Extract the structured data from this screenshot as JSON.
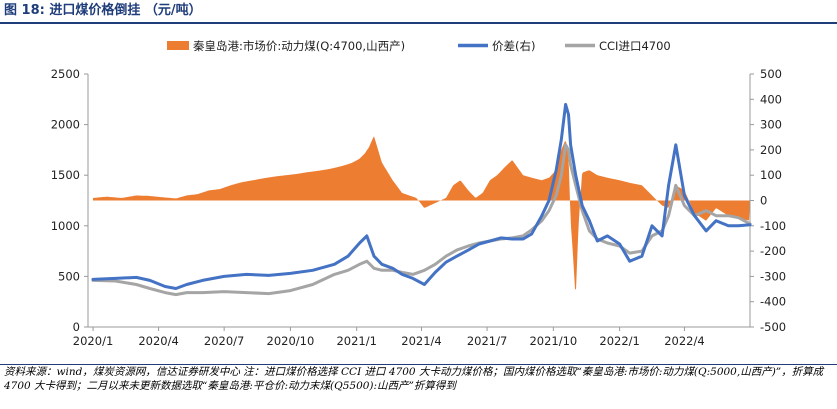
{
  "figure": {
    "title": "图 18:  进口煤价格倒挂 （元/吨）",
    "source": "资料来源：wind，煤炭资源网，信达证券研发中心    注：进口煤价格选择 CCI 进口 4700 大卡动力煤价格；国内煤价格选取“秦皇岛港:市场价:动力煤(Q:5000,山西产)”，折算成 4700 大卡得到；二月以来未更新数据选取“秦皇岛港:平仓价:动力末煤(Q5500):山西产”折算得到"
  },
  "colors": {
    "domestic": "#ed7d31",
    "spread": "#4472c4",
    "import": "#a5a5a5",
    "axis": "#9a9a9a"
  },
  "chart_data": {
    "type": "line",
    "title": "",
    "xlabel": "",
    "ylabel": "",
    "x_range": [
      "2020/1",
      "2022/7"
    ],
    "x_ticks": [
      "2020/1",
      "2020/4",
      "2020/7",
      "2020/10",
      "2021/1",
      "2021/4",
      "2021/7",
      "2021/10",
      "2022/1",
      "2022/4"
    ],
    "ylim_left": [
      0,
      2500
    ],
    "yticks_left": [
      0,
      500,
      1000,
      1500,
      2000,
      2500
    ],
    "ylim_right": [
      -500,
      500
    ],
    "yticks_right": [
      -500,
      -400,
      -300,
      -200,
      -100,
      0,
      100,
      200,
      300,
      400,
      500
    ],
    "grid": false,
    "legend_position": "top",
    "series": [
      {
        "name": "秦皇岛港:市场价:动力煤(Q:4700,山西产)",
        "kind": "area",
        "axis": "right",
        "x": [
          "2020/1/1",
          "2020/1/20",
          "2020/2/10",
          "2020/3/1",
          "2020/3/20",
          "2020/4/10",
          "2020/4/25",
          "2020/5/10",
          "2020/5/25",
          "2020/6/10",
          "2020/6/25",
          "2020/7/10",
          "2020/7/25",
          "2020/8/10",
          "2020/8/25",
          "2020/9/10",
          "2020/9/25",
          "2020/10/10",
          "2020/10/25",
          "2020/11/10",
          "2020/11/25",
          "2020/12/10",
          "2020/12/25",
          "2021/1/5",
          "2021/1/12",
          "2021/1/18",
          "2021/1/25",
          "2021/2/5",
          "2021/2/20",
          "2021/3/5",
          "2021/3/15",
          "2021/3/25",
          "2021/4/5",
          "2021/4/20",
          "2021/5/5",
          "2021/5/15",
          "2021/5/25",
          "2021/6/5",
          "2021/6/15",
          "2021/6/25",
          "2021/7/5",
          "2021/7/15",
          "2021/7/25",
          "2021/8/5",
          "2021/8/20",
          "2021/9/1",
          "2021/9/15",
          "2021/9/25",
          "2021/10/5",
          "2021/10/12",
          "2021/10/18",
          "2021/10/22",
          "2021/10/25",
          "2021/10/28",
          "2021/11/1",
          "2021/11/5",
          "2021/11/10",
          "2021/11/20",
          "2021/12/1",
          "2021/12/15",
          "2022/1/1",
          "2022/1/15",
          "2022/2/1",
          "2022/2/15",
          "2022/3/1",
          "2022/3/10",
          "2022/3/20",
          "2022/4/1",
          "2022/4/15",
          "2022/5/1",
          "2022/5/15",
          "2022/6/1",
          "2022/6/15",
          "2022/7/1"
        ],
        "values": [
          10,
          15,
          10,
          20,
          18,
          12,
          8,
          20,
          25,
          40,
          45,
          60,
          72,
          80,
          88,
          95,
          100,
          105,
          112,
          118,
          125,
          135,
          148,
          165,
          185,
          210,
          255,
          150,
          80,
          30,
          20,
          10,
          -30,
          -10,
          10,
          60,
          80,
          40,
          10,
          30,
          80,
          100,
          130,
          160,
          100,
          90,
          80,
          90,
          120,
          200,
          240,
          190,
          -80,
          -200,
          -390,
          -100,
          110,
          120,
          100,
          90,
          80,
          70,
          60,
          20,
          -20,
          -30,
          60,
          40,
          -50,
          -80,
          -30,
          -60,
          -70,
          -80
        ]
      },
      {
        "name": "价差(右)",
        "kind": "line",
        "axis": "left",
        "x": [
          "2020/1/1",
          "2020/2/1",
          "2020/3/1",
          "2020/3/20",
          "2020/4/10",
          "2020/4/25",
          "2020/5/10",
          "2020/6/1",
          "2020/7/1",
          "2020/8/1",
          "2020/9/1",
          "2020/10/1",
          "2020/11/1",
          "2020/12/1",
          "2020/12/20",
          "2021/1/5",
          "2021/1/15",
          "2021/1/25",
          "2021/2/5",
          "2021/2/20",
          "2021/3/5",
          "2021/3/20",
          "2021/4/5",
          "2021/4/20",
          "2021/5/5",
          "2021/5/20",
          "2021/6/5",
          "2021/6/20",
          "2021/7/5",
          "2021/7/20",
          "2021/8/5",
          "2021/8/20",
          "2021/9/1",
          "2021/9/15",
          "2021/9/25",
          "2021/10/5",
          "2021/10/12",
          "2021/10/18",
          "2021/10/22",
          "2021/10/25",
          "2021/11/1",
          "2021/11/10",
          "2021/11/20",
          "2021/12/1",
          "2021/12/15",
          "2022/1/1",
          "2022/1/15",
          "2022/2/1",
          "2022/2/15",
          "2022/3/1",
          "2022/3/10",
          "2022/3/20",
          "2022/4/1",
          "2022/4/15",
          "2022/5/1",
          "2022/5/15",
          "2022/6/1",
          "2022/6/15",
          "2022/7/1"
        ],
        "values": [
          470,
          480,
          490,
          460,
          400,
          380,
          420,
          460,
          500,
          520,
          510,
          530,
          560,
          620,
          700,
          830,
          900,
          700,
          620,
          580,
          520,
          480,
          420,
          540,
          640,
          700,
          760,
          820,
          850,
          880,
          870,
          870,
          920,
          1100,
          1250,
          1550,
          1850,
          2200,
          2100,
          1800,
          1500,
          1200,
          1050,
          850,
          900,
          820,
          650,
          700,
          1000,
          900,
          1400,
          1800,
          1300,
          1100,
          950,
          1050,
          1000,
          1000,
          1010
        ]
      },
      {
        "name": "CCI进口4700",
        "kind": "line",
        "axis": "left",
        "x": [
          "2020/1/1",
          "2020/2/1",
          "2020/3/1",
          "2020/3/20",
          "2020/4/10",
          "2020/4/25",
          "2020/5/10",
          "2020/6/1",
          "2020/7/1",
          "2020/8/1",
          "2020/9/1",
          "2020/10/1",
          "2020/11/1",
          "2020/12/1",
          "2020/12/20",
          "2021/1/5",
          "2021/1/15",
          "2021/1/25",
          "2021/2/5",
          "2021/2/20",
          "2021/3/5",
          "2021/3/20",
          "2021/4/5",
          "2021/4/20",
          "2021/5/5",
          "2021/5/20",
          "2021/6/5",
          "2021/6/20",
          "2021/7/5",
          "2021/7/20",
          "2021/8/5",
          "2021/8/20",
          "2021/9/1",
          "2021/9/15",
          "2021/9/25",
          "2021/10/5",
          "2021/10/12",
          "2021/10/18",
          "2021/10/22",
          "2021/10/25",
          "2021/11/1",
          "2021/11/10",
          "2021/11/20",
          "2021/12/1",
          "2021/12/15",
          "2022/1/1",
          "2022/1/15",
          "2022/2/1",
          "2022/2/15",
          "2022/3/1",
          "2022/3/10",
          "2022/3/20",
          "2022/4/1",
          "2022/4/15",
          "2022/5/1",
          "2022/5/15",
          "2022/6/1",
          "2022/6/15",
          "2022/7/1"
        ],
        "values": [
          460,
          455,
          420,
          380,
          340,
          320,
          340,
          340,
          350,
          340,
          330,
          360,
          420,
          520,
          560,
          620,
          650,
          580,
          560,
          560,
          540,
          520,
          560,
          620,
          700,
          760,
          800,
          830,
          850,
          870,
          880,
          900,
          960,
          1050,
          1150,
          1300,
          1500,
          1800,
          1750,
          1600,
          1400,
          1150,
          950,
          870,
          830,
          800,
          730,
          750,
          900,
          950,
          1100,
          1400,
          1200,
          1100,
          1150,
          1100,
          1100,
          1080,
          1020
        ]
      }
    ],
    "x_min": "2019/12/25",
    "x_max": "2022/7/1"
  }
}
